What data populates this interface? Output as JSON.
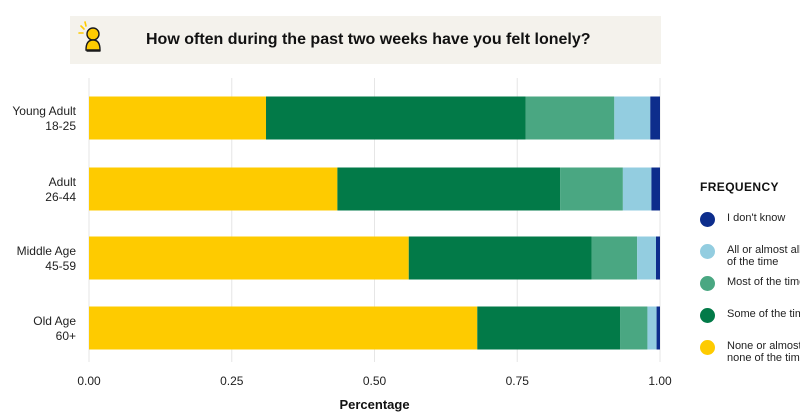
{
  "header": {
    "title": "How often during the past two weeks have you felt lonely?"
  },
  "legend": {
    "title": "FREQUENCY",
    "items": [
      {
        "label": "I don't know",
        "color": "#0d2d8c"
      },
      {
        "label": "All or almost all\nof the time",
        "color": "#93cde0"
      },
      {
        "label": "Most of the time",
        "color": "#4aa782"
      },
      {
        "label": "Some of the time",
        "color": "#027a48"
      },
      {
        "label": "None or almost\nnone of the time",
        "color": "#fecb00"
      }
    ]
  },
  "chart_data": {
    "type": "bar",
    "orientation": "horizontal",
    "stacked": true,
    "categories": [
      "Young Adult\n18-25",
      "Adult\n26-44",
      "Middle Age\n45-59",
      "Old Age\n60+"
    ],
    "series": [
      {
        "name": "None or almost none of the time",
        "color": "#fecb00",
        "values": [
          0.31,
          0.435,
          0.56,
          0.68
        ]
      },
      {
        "name": "Some of the time",
        "color": "#027a48",
        "values": [
          0.455,
          0.39,
          0.32,
          0.25
        ]
      },
      {
        "name": "Most of the time",
        "color": "#4aa782",
        "values": [
          0.155,
          0.11,
          0.08,
          0.048
        ]
      },
      {
        "name": "All or almost all of the time",
        "color": "#93cde0",
        "values": [
          0.063,
          0.05,
          0.033,
          0.016
        ]
      },
      {
        "name": "I don't know",
        "color": "#0d2d8c",
        "values": [
          0.017,
          0.015,
          0.007,
          0.006
        ]
      }
    ],
    "xlabel": "Percentage",
    "ylabel": "",
    "xlim": [
      0,
      1
    ],
    "xticks": [
      0,
      0.25,
      0.5,
      0.75,
      1
    ],
    "xtick_labels": [
      "0.00",
      "0.25",
      "0.50",
      "0.75",
      "1.00"
    ],
    "grid": "vertical",
    "legend_position": "right"
  }
}
